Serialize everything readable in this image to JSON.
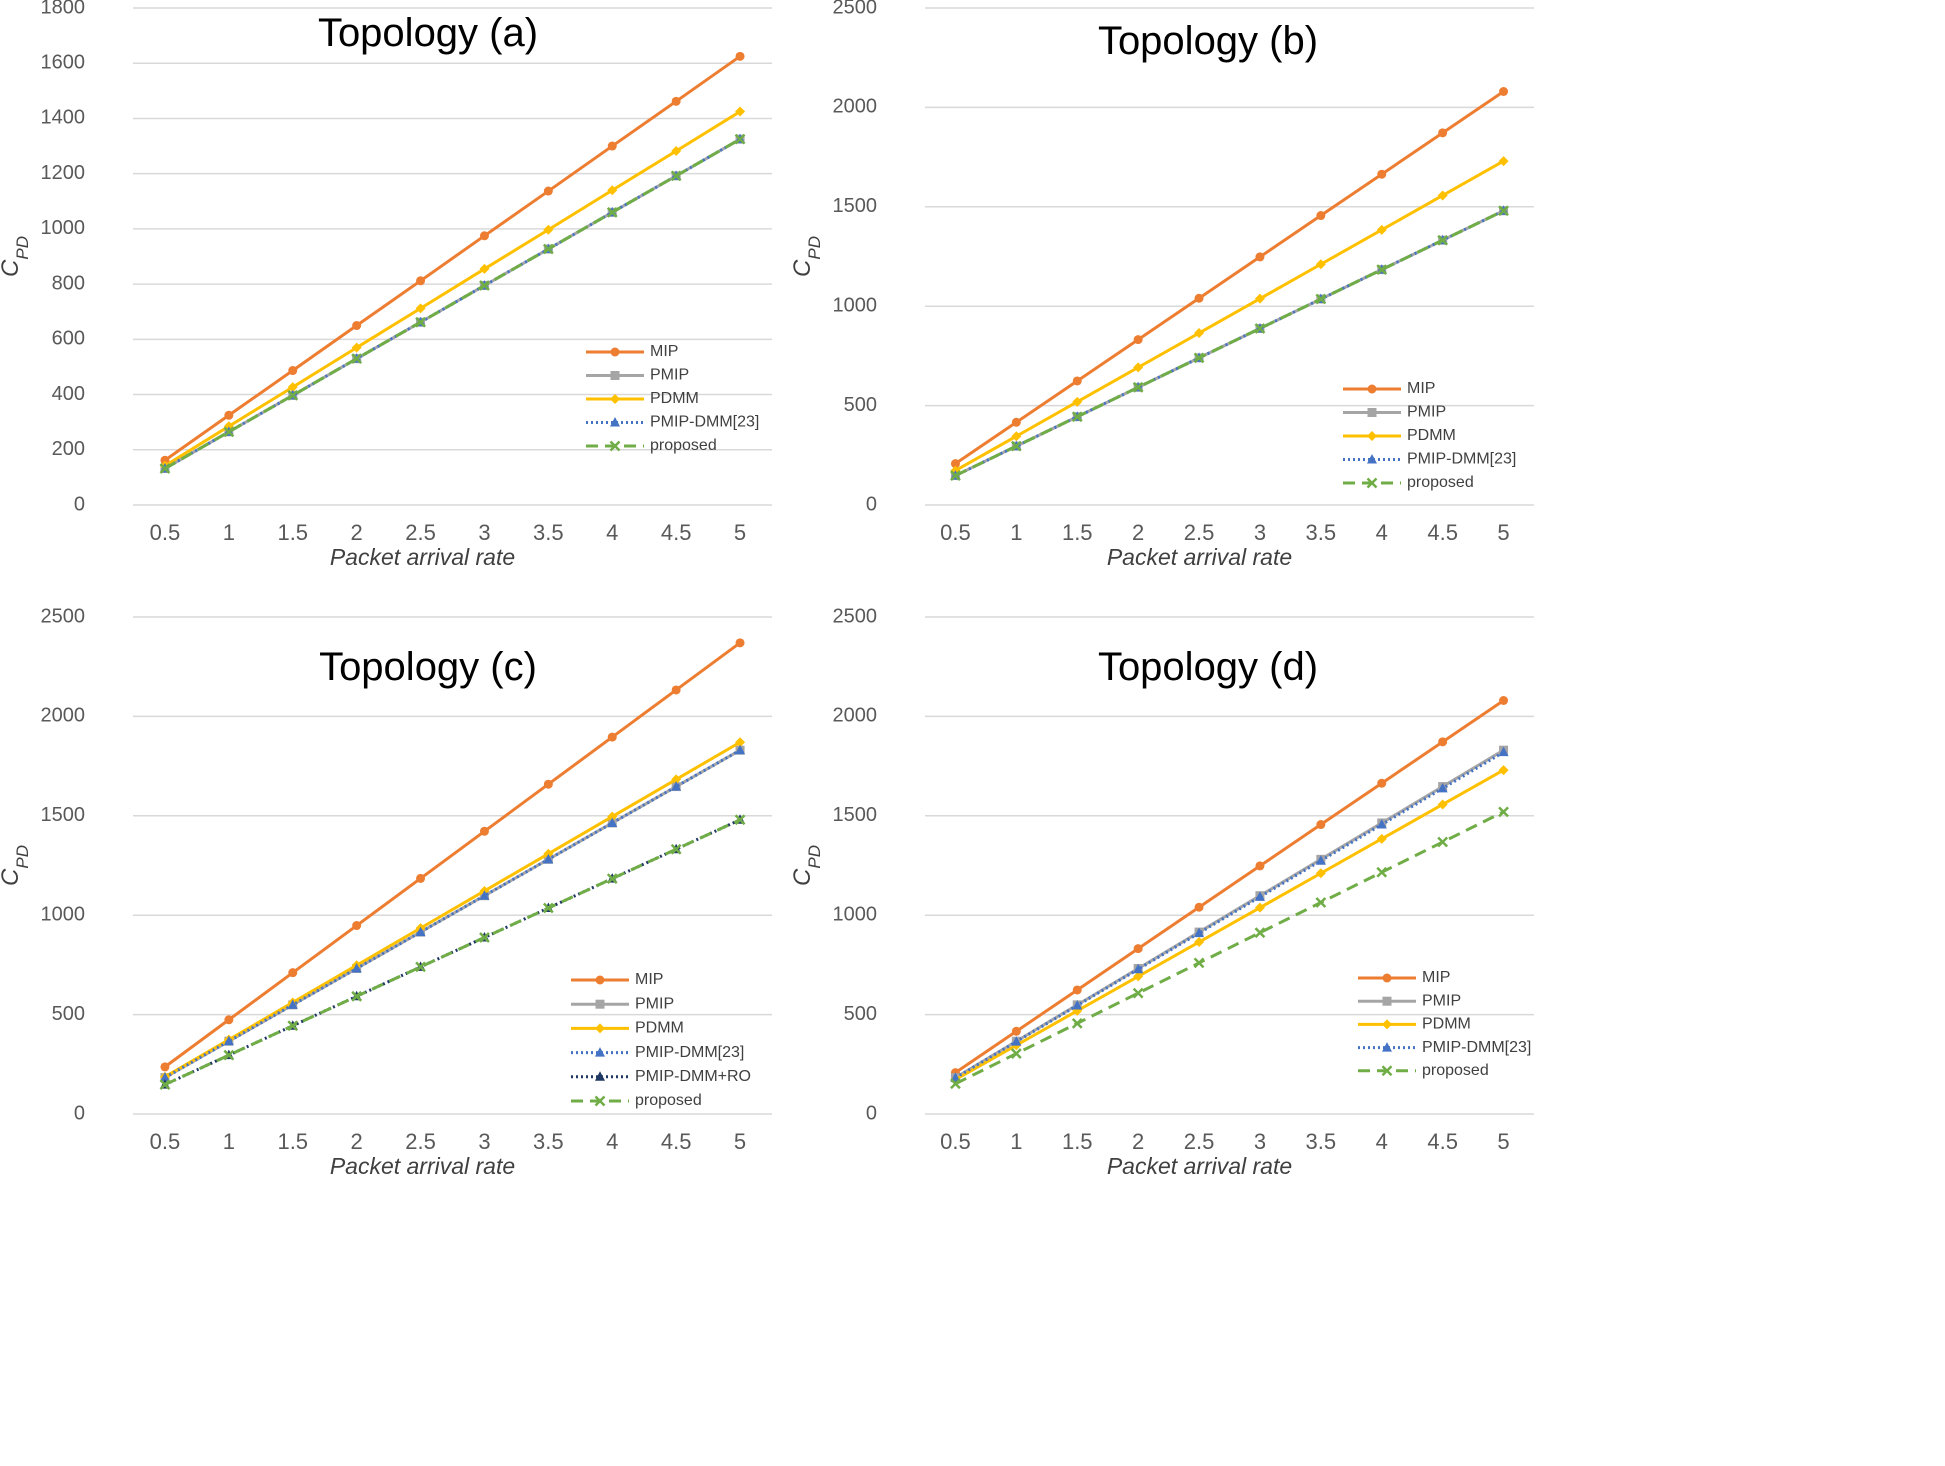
{
  "chart_data": [
    {
      "type": "line",
      "title": "Topology (a)",
      "xlabel": "Packet arrival rate",
      "ylabel": "C_PD",
      "x": [
        "0.5",
        "1",
        "1.5",
        "2",
        "2.5",
        "3",
        "3.5",
        "4",
        "4.5",
        "5"
      ],
      "ylim": [
        0,
        1800
      ],
      "yticks": [
        0,
        200,
        400,
        600,
        800,
        1000,
        1200,
        1400,
        1600,
        1800
      ],
      "grid": true,
      "legend_position": "lower-right",
      "series": [
        {
          "name": "MIP",
          "color": "#ed7d31",
          "style": "solid",
          "marker": "circle",
          "values": [
            162,
            325,
            487,
            650,
            812,
            975,
            1137,
            1300,
            1462,
            1625
          ]
        },
        {
          "name": "PMIP",
          "color": "#a5a5a5",
          "style": "solid",
          "marker": "square",
          "values": [
            132,
            265,
            397,
            530,
            662,
            795,
            927,
            1060,
            1192,
            1325
          ]
        },
        {
          "name": "PDMM",
          "color": "#ffc000",
          "style": "solid",
          "marker": "diamond",
          "values": [
            142,
            285,
            427,
            570,
            712,
            855,
            997,
            1140,
            1282,
            1425
          ]
        },
        {
          "name": "PMIP-DMM[23]",
          "color": "#4472c4",
          "style": "dotted",
          "marker": "triangle",
          "values": [
            132,
            265,
            397,
            530,
            662,
            795,
            927,
            1060,
            1192,
            1325
          ]
        },
        {
          "name": "proposed",
          "color": "#70ad47",
          "style": "dashed",
          "marker": "x",
          "values": [
            132,
            265,
            397,
            530,
            662,
            795,
            927,
            1060,
            1192,
            1325
          ]
        }
      ]
    },
    {
      "type": "line",
      "title": "Topology (b)",
      "xlabel": "Packet arrival rate",
      "ylabel": "C_PD",
      "x": [
        "0.5",
        "1",
        "1.5",
        "2",
        "2.5",
        "3",
        "3.5",
        "4",
        "4.5",
        "5"
      ],
      "ylim": [
        0,
        2500
      ],
      "yticks": [
        0,
        500,
        1000,
        1500,
        2000,
        2500
      ],
      "grid": true,
      "legend_position": "lower-right",
      "series": [
        {
          "name": "MIP",
          "color": "#ed7d31",
          "style": "solid",
          "marker": "circle",
          "values": [
            208,
            416,
            624,
            832,
            1040,
            1248,
            1456,
            1664,
            1872,
            2080
          ]
        },
        {
          "name": "PMIP",
          "color": "#a5a5a5",
          "style": "solid",
          "marker": "square",
          "values": [
            148,
            296,
            444,
            592,
            740,
            888,
            1036,
            1184,
            1332,
            1480
          ]
        },
        {
          "name": "PDMM",
          "color": "#ffc000",
          "style": "solid",
          "marker": "diamond",
          "values": [
            173,
            346,
            519,
            692,
            865,
            1038,
            1211,
            1384,
            1557,
            1730
          ]
        },
        {
          "name": "PMIP-DMM[23]",
          "color": "#4472c4",
          "style": "dotted",
          "marker": "triangle",
          "values": [
            148,
            296,
            444,
            592,
            740,
            888,
            1036,
            1184,
            1332,
            1480
          ]
        },
        {
          "name": "proposed",
          "color": "#70ad47",
          "style": "dashed",
          "marker": "x",
          "values": [
            148,
            296,
            444,
            592,
            740,
            888,
            1036,
            1184,
            1332,
            1480
          ]
        }
      ]
    },
    {
      "type": "line",
      "title": "Topology (c)",
      "xlabel": "Packet arrival rate",
      "ylabel": "C_PD",
      "x": [
        "0.5",
        "1",
        "1.5",
        "2",
        "2.5",
        "3",
        "3.5",
        "4",
        "4.5",
        "5"
      ],
      "ylim": [
        0,
        2500
      ],
      "yticks": [
        0,
        500,
        1000,
        1500,
        2000,
        2500
      ],
      "grid": true,
      "legend_position": "lower-right",
      "series": [
        {
          "name": "MIP",
          "color": "#ed7d31",
          "style": "solid",
          "marker": "circle",
          "values": [
            237,
            474,
            711,
            948,
            1185,
            1422,
            1659,
            1896,
            2133,
            2370
          ]
        },
        {
          "name": "PMIP",
          "color": "#a5a5a5",
          "style": "solid",
          "marker": "square",
          "values": [
            183,
            366,
            549,
            732,
            915,
            1098,
            1281,
            1464,
            1647,
            1830
          ]
        },
        {
          "name": "PDMM",
          "color": "#ffc000",
          "style": "solid",
          "marker": "diamond",
          "values": [
            187,
            374,
            561,
            748,
            935,
            1122,
            1309,
            1496,
            1683,
            1870
          ]
        },
        {
          "name": "PMIP-DMM[23]",
          "color": "#4472c4",
          "style": "dotted",
          "marker": "triangle",
          "values": [
            183,
            366,
            549,
            732,
            915,
            1098,
            1281,
            1464,
            1647,
            1830
          ]
        },
        {
          "name": "PMIP-DMM+RO",
          "color": "#203864",
          "style": "dotted",
          "marker": "triangle",
          "values": [
            148,
            296,
            444,
            592,
            740,
            888,
            1036,
            1184,
            1332,
            1480
          ]
        },
        {
          "name": "proposed",
          "color": "#70ad47",
          "style": "dashed",
          "marker": "x",
          "values": [
            148,
            296,
            444,
            592,
            740,
            888,
            1036,
            1184,
            1332,
            1480
          ]
        }
      ]
    },
    {
      "type": "line",
      "title": "Topology (d)",
      "xlabel": "Packet arrival rate",
      "ylabel": "C_PD",
      "x": [
        "0.5",
        "1",
        "1.5",
        "2",
        "2.5",
        "3",
        "3.5",
        "4",
        "4.5",
        "5"
      ],
      "ylim": [
        0,
        2500
      ],
      "yticks": [
        0,
        500,
        1000,
        1500,
        2000,
        2500
      ],
      "grid": true,
      "legend_position": "lower-right",
      "series": [
        {
          "name": "MIP",
          "color": "#ed7d31",
          "style": "solid",
          "marker": "circle",
          "values": [
            208,
            416,
            624,
            832,
            1040,
            1248,
            1456,
            1664,
            1872,
            2080
          ]
        },
        {
          "name": "PMIP",
          "color": "#a5a5a5",
          "style": "solid",
          "marker": "square",
          "values": [
            183,
            366,
            549,
            732,
            915,
            1098,
            1281,
            1464,
            1647,
            1830
          ]
        },
        {
          "name": "PDMM",
          "color": "#ffc000",
          "style": "solid",
          "marker": "diamond",
          "values": [
            173,
            346,
            519,
            692,
            865,
            1038,
            1211,
            1384,
            1557,
            1730
          ]
        },
        {
          "name": "PMIP-DMM[23]",
          "color": "#4472c4",
          "style": "dotted",
          "marker": "triangle",
          "values": [
            182,
            364,
            546,
            728,
            910,
            1092,
            1274,
            1456,
            1638,
            1820
          ]
        },
        {
          "name": "proposed",
          "color": "#70ad47",
          "style": "dashed",
          "marker": "x",
          "values": [
            152,
            304,
            456,
            608,
            760,
            912,
            1064,
            1216,
            1368,
            1520
          ]
        }
      ]
    }
  ]
}
